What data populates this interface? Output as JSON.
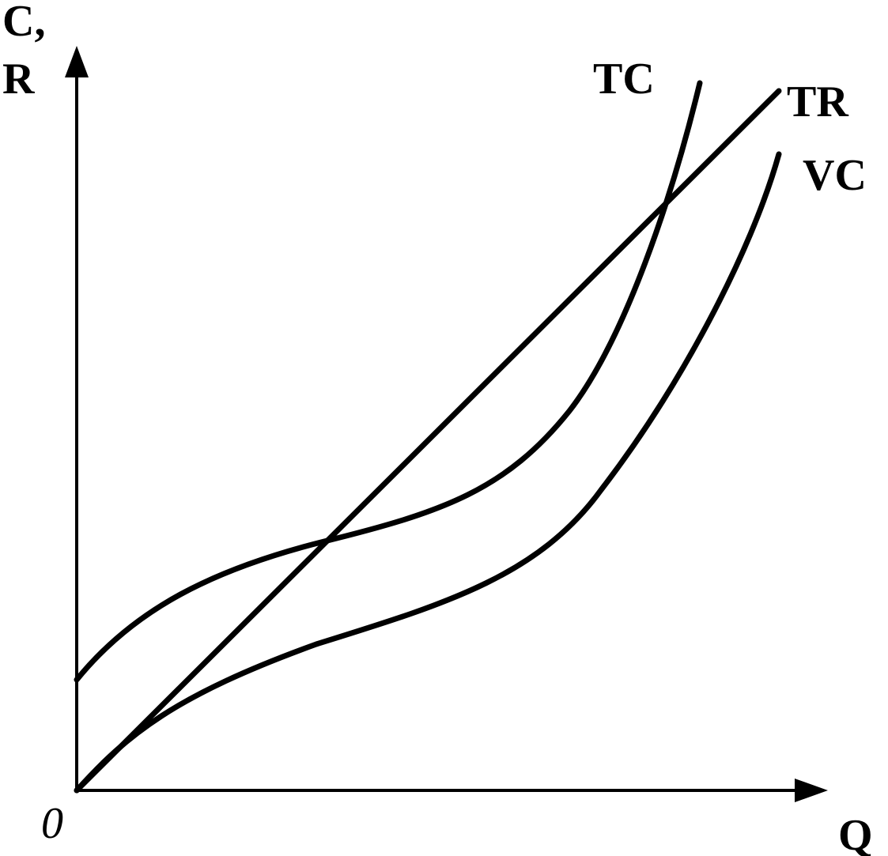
{
  "axes": {
    "y_label_lines": [
      "C,",
      "R"
    ],
    "x_label": "Q",
    "origin": "0"
  },
  "curves": [
    {
      "label": "TC"
    },
    {
      "label": "TR"
    },
    {
      "label": "VC"
    }
  ]
}
